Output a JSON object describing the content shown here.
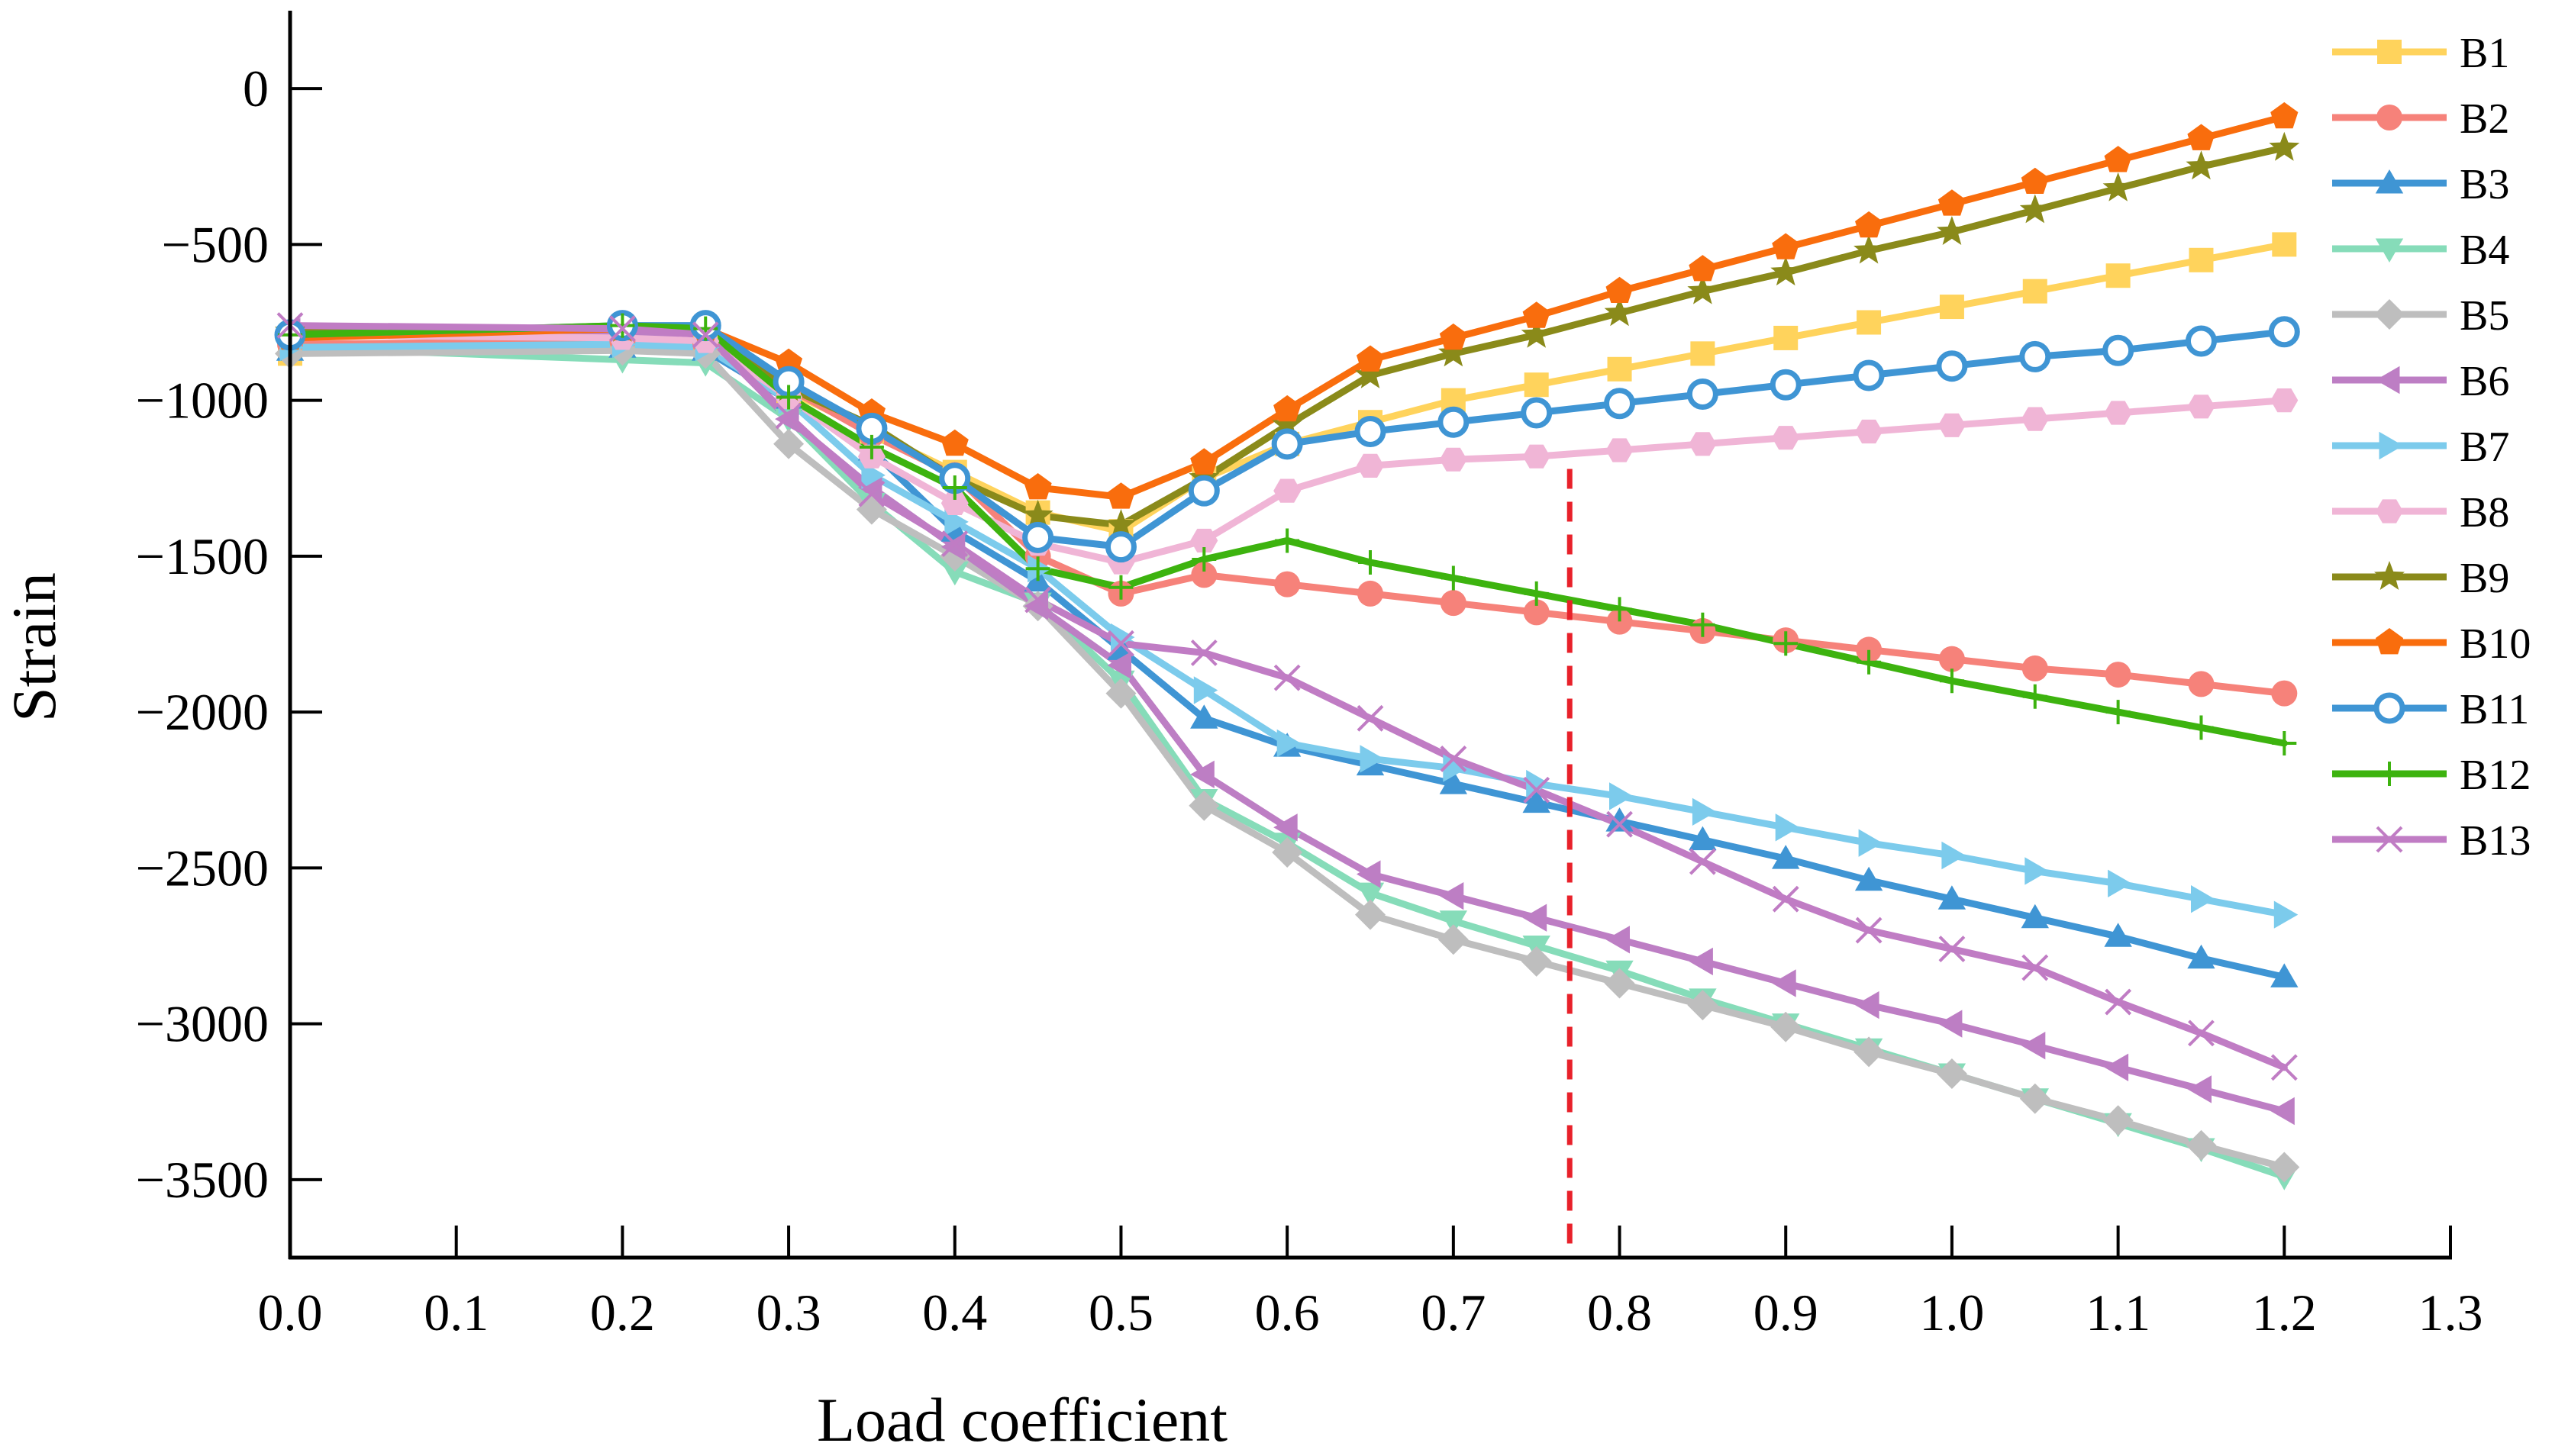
{
  "chart_data": {
    "type": "line",
    "title": "",
    "xlabel": "Load coefficient",
    "ylabel": "Strain",
    "xlim": [
      0.0,
      1.3
    ],
    "ylim": [
      -3750,
      250
    ],
    "xticks": [
      0.0,
      0.1,
      0.2,
      0.3,
      0.4,
      0.5,
      0.6,
      0.7,
      0.8,
      0.9,
      1.0,
      1.1,
      1.2,
      1.3
    ],
    "xtick_labels": [
      "0.0",
      "0.1",
      "0.2",
      "0.3",
      "0.4",
      "0.5",
      "0.6",
      "0.7",
      "0.8",
      "0.9",
      "1.0",
      "1.1",
      "1.2",
      "1.3"
    ],
    "yticks": [
      0,
      -500,
      -1000,
      -1500,
      -2000,
      -2500,
      -3000,
      -3500
    ],
    "ytick_labels": [
      "0",
      "−500",
      "−1000",
      "−1500",
      "−2000",
      "−2500",
      "−3000",
      "−3500"
    ],
    "grid": false,
    "legend_position": "right",
    "reference_line": {
      "x": 0.77,
      "y_top": -1220,
      "color": "#e8212a",
      "style": "dashed"
    },
    "x": [
      0.0,
      0.2,
      0.25,
      0.3,
      0.35,
      0.4,
      0.45,
      0.5,
      0.55,
      0.6,
      0.65,
      0.7,
      0.75,
      0.8,
      0.85,
      0.9,
      0.95,
      1.0,
      1.05,
      1.1,
      1.15,
      1.2
    ],
    "series": [
      {
        "name": "B1",
        "color": "#ffd35c",
        "marker": "square",
        "values": [
          -850,
          -790,
          -800,
          -970,
          -1100,
          -1230,
          -1360,
          -1420,
          -1250,
          -1140,
          -1070,
          -1000,
          -950,
          -900,
          -850,
          -800,
          -750,
          -700,
          -650,
          -600,
          -550,
          -500
        ]
      },
      {
        "name": "B2",
        "color": "#f6827a",
        "marker": "circle",
        "values": [
          -820,
          -810,
          -820,
          -960,
          -1110,
          -1240,
          -1500,
          -1620,
          -1560,
          -1590,
          -1620,
          -1650,
          -1680,
          -1710,
          -1740,
          -1770,
          -1800,
          -1830,
          -1860,
          -1880,
          -1910,
          -1940
        ]
      },
      {
        "name": "B3",
        "color": "#3f95d4",
        "marker": "triangle-up",
        "values": [
          -840,
          -830,
          -840,
          -1000,
          -1160,
          -1420,
          -1580,
          -1800,
          -2020,
          -2110,
          -2170,
          -2230,
          -2290,
          -2350,
          -2410,
          -2470,
          -2540,
          -2600,
          -2660,
          -2720,
          -2790,
          -2850
        ]
      },
      {
        "name": "B4",
        "color": "#86dcb9",
        "marker": "triangle-down",
        "values": [
          -830,
          -870,
          -880,
          -1060,
          -1330,
          -1550,
          -1650,
          -1900,
          -2280,
          -2420,
          -2580,
          -2670,
          -2750,
          -2830,
          -2920,
          -3000,
          -3080,
          -3160,
          -3240,
          -3320,
          -3400,
          -3490
        ]
      },
      {
        "name": "B5",
        "color": "#bebebe",
        "marker": "diamond",
        "values": [
          -850,
          -840,
          -850,
          -1140,
          -1350,
          -1500,
          -1660,
          -1940,
          -2300,
          -2450,
          -2650,
          -2730,
          -2800,
          -2870,
          -2940,
          -3010,
          -3090,
          -3160,
          -3240,
          -3310,
          -3390,
          -3460
        ]
      },
      {
        "name": "B6",
        "color": "#bd7ec4",
        "marker": "triangle-left",
        "values": [
          -780,
          -780,
          -790,
          -1060,
          -1280,
          -1470,
          -1660,
          -1850,
          -2200,
          -2370,
          -2520,
          -2590,
          -2660,
          -2730,
          -2800,
          -2870,
          -2940,
          -3000,
          -3070,
          -3140,
          -3210,
          -3280
        ]
      },
      {
        "name": "B7",
        "color": "#7ccbec",
        "marker": "triangle-right",
        "values": [
          -830,
          -820,
          -830,
          -1000,
          -1240,
          -1390,
          -1540,
          -1760,
          -1930,
          -2100,
          -2150,
          -2180,
          -2230,
          -2270,
          -2320,
          -2370,
          -2420,
          -2460,
          -2510,
          -2550,
          -2600,
          -2650
        ]
      },
      {
        "name": "B8",
        "color": "#f0b5d6",
        "marker": "hexagon",
        "values": [
          -790,
          -800,
          -810,
          -990,
          -1180,
          -1330,
          -1460,
          -1520,
          -1450,
          -1290,
          -1210,
          -1190,
          -1180,
          -1160,
          -1140,
          -1120,
          -1100,
          -1080,
          -1060,
          -1040,
          -1020,
          -1000
        ]
      },
      {
        "name": "B9",
        "color": "#8a8a1a",
        "marker": "star",
        "values": [
          -780,
          -770,
          -780,
          -960,
          -1080,
          -1250,
          -1370,
          -1400,
          -1250,
          -1080,
          -920,
          -850,
          -790,
          -720,
          -650,
          -590,
          -520,
          -460,
          -390,
          -320,
          -250,
          -190
        ]
      },
      {
        "name": "B10",
        "color": "#f96d0d",
        "marker": "pentagon",
        "values": [
          -800,
          -770,
          -770,
          -880,
          -1040,
          -1140,
          -1280,
          -1310,
          -1200,
          -1030,
          -870,
          -800,
          -730,
          -650,
          -580,
          -510,
          -440,
          -370,
          -300,
          -230,
          -160,
          -90
        ]
      },
      {
        "name": "B11",
        "color": "#3f95d4",
        "marker": "ring",
        "values": [
          -790,
          -760,
          -760,
          -940,
          -1090,
          -1250,
          -1440,
          -1470,
          -1290,
          -1140,
          -1100,
          -1070,
          -1040,
          -1010,
          -980,
          -950,
          -920,
          -890,
          -860,
          -840,
          -810,
          -780
        ]
      },
      {
        "name": "B12",
        "color": "#3db30f",
        "marker": "plus",
        "values": [
          -790,
          -760,
          -770,
          -990,
          -1150,
          -1280,
          -1540,
          -1600,
          -1510,
          -1450,
          -1520,
          -1570,
          -1620,
          -1670,
          -1720,
          -1780,
          -1840,
          -1900,
          -1950,
          -2000,
          -2050,
          -2100
        ]
      },
      {
        "name": "B13",
        "color": "#c07cc4",
        "marker": "x",
        "values": [
          -760,
          -770,
          -790,
          -1050,
          -1300,
          -1460,
          -1640,
          -1780,
          -1810,
          -1890,
          -2020,
          -2150,
          -2250,
          -2360,
          -2480,
          -2600,
          -2700,
          -2760,
          -2820,
          -2930,
          -3030,
          -3140
        ]
      }
    ]
  }
}
